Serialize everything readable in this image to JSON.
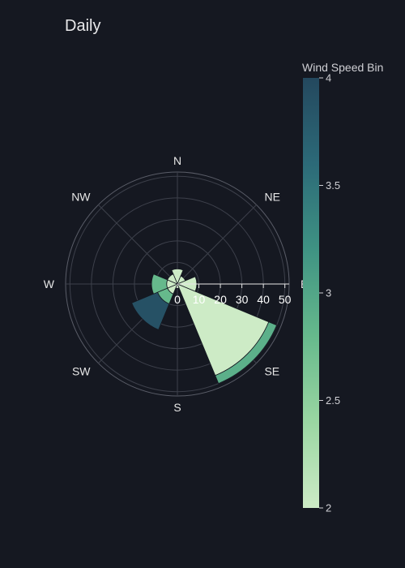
{
  "chart_data": {
    "type": "barpolar",
    "title": "Daily",
    "directions": [
      "N",
      "NE",
      "E",
      "SE",
      "S",
      "SW",
      "W",
      "NW"
    ],
    "radial_ticks": [
      0,
      10,
      20,
      30,
      40,
      50
    ],
    "radial_range": [
      0,
      52
    ],
    "colorbar": {
      "title": "Wind Speed Bin",
      "range": [
        2,
        4
      ],
      "ticks": [
        "2",
        "2.5",
        "3",
        "3.5",
        "4"
      ]
    },
    "colorscale": [
      "#cdebc6",
      "#9ad6a2",
      "#66b98c",
      "#3f9383",
      "#2c6a78",
      "#24485e"
    ],
    "bars": [
      {
        "name": "bar-n-1",
        "direction_deg": 0,
        "width_deg": 45,
        "base": 0,
        "value": 7,
        "color_value": 2
      },
      {
        "name": "bar-ne-1",
        "direction_deg": 45,
        "width_deg": 45,
        "base": 0,
        "value": 4,
        "color_value": 2
      },
      {
        "name": "bar-e-1",
        "direction_deg": 90,
        "width_deg": 45,
        "base": 0,
        "value": 9,
        "color_value": 2
      },
      {
        "name": "bar-se-1",
        "direction_deg": 135,
        "width_deg": 45,
        "base": 0,
        "value": 46,
        "color_value": 2
      },
      {
        "name": "bar-se-2",
        "direction_deg": 135,
        "width_deg": 45,
        "base": 46,
        "value": 4,
        "color_value": 2.9
      },
      {
        "name": "bar-s-1",
        "direction_deg": 180,
        "width_deg": 45,
        "base": 0,
        "value": 2,
        "color_value": 2
      },
      {
        "name": "bar-sw-1",
        "direction_deg": 225,
        "width_deg": 45,
        "base": 0,
        "value": 5,
        "color_value": 2
      },
      {
        "name": "bar-sw-2",
        "direction_deg": 225,
        "width_deg": 45,
        "base": 5,
        "value": 5,
        "color_value": 2.8
      },
      {
        "name": "bar-sw-3",
        "direction_deg": 225,
        "width_deg": 45,
        "base": 10,
        "value": 13,
        "color_value": 3.9
      },
      {
        "name": "bar-w-1",
        "direction_deg": 270,
        "width_deg": 45,
        "base": 0,
        "value": 5,
        "color_value": 2
      },
      {
        "name": "bar-w-2",
        "direction_deg": 270,
        "width_deg": 45,
        "base": 5,
        "value": 7,
        "color_value": 2.8
      },
      {
        "name": "bar-nw-1",
        "direction_deg": 315,
        "width_deg": 45,
        "base": 0,
        "value": 5,
        "color_value": 2
      }
    ]
  }
}
